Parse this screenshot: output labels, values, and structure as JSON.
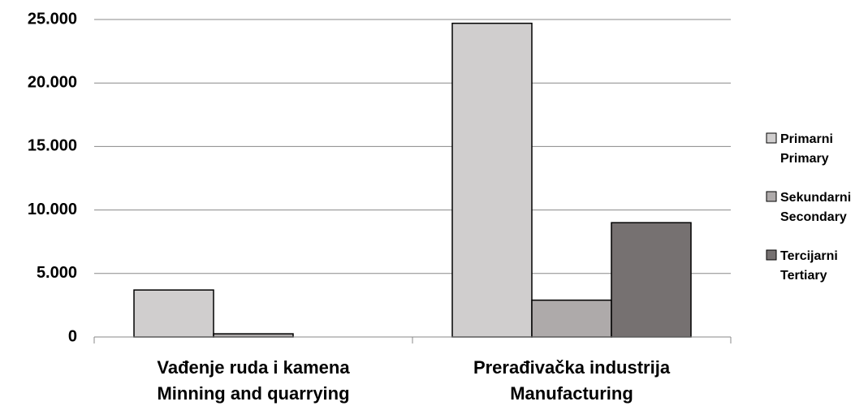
{
  "chart_data": {
    "type": "bar",
    "categories": [
      "Vađenje ruda i kamena\nMinning and quarrying",
      "Prerađivačka industrija\nManufacturing"
    ],
    "series": [
      {
        "name": "Primarni\nPrimary",
        "color": "#d0cece",
        "values": [
          3700,
          24700
        ]
      },
      {
        "name": "Sekundarni\nSecondary",
        "color": "#aeaaaa",
        "values": [
          250,
          2900
        ]
      },
      {
        "name": "Tercijarni\nTertiary",
        "color": "#767171",
        "values": [
          0,
          9000
        ]
      }
    ],
    "ylim": [
      0,
      25000
    ],
    "yticks": [
      0,
      {
        "value": 5000,
        "label": "5.000"
      },
      {
        "value": 10000,
        "label": "10.000"
      },
      {
        "value": 15000,
        "label": "15.000"
      },
      {
        "value": 20000,
        "label": "20.000"
      },
      {
        "value": 25000,
        "label": "25.000"
      }
    ],
    "grid": true,
    "legend": "right"
  }
}
